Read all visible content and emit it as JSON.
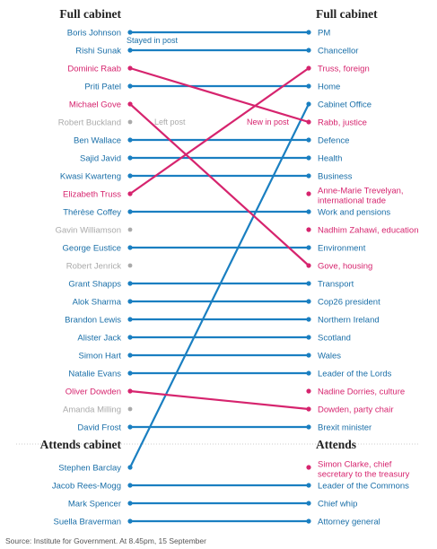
{
  "headers": {
    "left_top": "Full cabinet",
    "right_top": "Full cabinet",
    "left_attends": "Attends cabinet",
    "right_attends": "Attends"
  },
  "annotations": {
    "stayed": "Stayed in post",
    "left_post": "Left post",
    "new_in_post": "New in post"
  },
  "source": "Source: Institute for Government. At 8.45pm, 15 September",
  "colors": {
    "stayed": "#1a7fc1",
    "moved": "#d6246e",
    "left": "#aaaaaa",
    "text_blue": "#1a6fa8",
    "header": "#222222",
    "divider": "#cccccc"
  },
  "left_rows": [
    {
      "name": "Boris Johnson",
      "status": "stayed",
      "to": 0
    },
    {
      "name": "Rishi Sunak",
      "status": "stayed",
      "to": 1
    },
    {
      "name": "Dominic Raab",
      "status": "moved",
      "to": 5
    },
    {
      "name": "Priti Patel",
      "status": "stayed",
      "to": 3
    },
    {
      "name": "Michael Gove",
      "status": "moved",
      "to": 13
    },
    {
      "name": "Robert Buckland",
      "status": "left",
      "to": null
    },
    {
      "name": "Ben Wallace",
      "status": "stayed",
      "to": 6
    },
    {
      "name": "Sajid Javid",
      "status": "stayed",
      "to": 7
    },
    {
      "name": "Kwasi Kwarteng",
      "status": "stayed",
      "to": 8
    },
    {
      "name": "Elizabeth Truss",
      "status": "moved",
      "to": 2
    },
    {
      "name": "Thérèse Coffey",
      "status": "stayed",
      "to": 10
    },
    {
      "name": "Gavin Williamson",
      "status": "left",
      "to": null
    },
    {
      "name": "George Eustice",
      "status": "stayed",
      "to": 12
    },
    {
      "name": "Robert Jenrick",
      "status": "left",
      "to": null
    },
    {
      "name": "Grant Shapps",
      "status": "stayed",
      "to": 14
    },
    {
      "name": "Alok Sharma",
      "status": "stayed",
      "to": 15
    },
    {
      "name": "Brandon Lewis",
      "status": "stayed",
      "to": 16
    },
    {
      "name": "Alister Jack",
      "status": "stayed",
      "to": 17
    },
    {
      "name": "Simon Hart",
      "status": "stayed",
      "to": 18
    },
    {
      "name": "Natalie Evans",
      "status": "stayed",
      "to": 19
    },
    {
      "name": "Oliver Dowden",
      "status": "moved",
      "to": 21
    },
    {
      "name": "Amanda Milling",
      "status": "left",
      "to": null
    },
    {
      "name": "David Frost",
      "status": "stayed",
      "to": 22
    },
    {
      "name": "Stephen Barclay",
      "status": "stayed",
      "to": 4
    },
    {
      "name": "Jacob Rees-Mogg",
      "status": "stayed",
      "to": 24
    },
    {
      "name": "Mark Spencer",
      "status": "stayed",
      "to": 25
    },
    {
      "name": "Suella Braverman",
      "status": "stayed",
      "to": 26
    }
  ],
  "right_rows": [
    {
      "text": "PM",
      "style": "stayed"
    },
    {
      "text": "Chancellor",
      "style": "stayed"
    },
    {
      "text": "Truss, foreign",
      "style": "moved"
    },
    {
      "text": "Home",
      "style": "stayed"
    },
    {
      "text": "Cabinet Office",
      "style": "stayed"
    },
    {
      "text": "Rabb, justice",
      "style": "moved"
    },
    {
      "text": "Defence",
      "style": "stayed"
    },
    {
      "text": "Health",
      "style": "stayed"
    },
    {
      "text": "Business",
      "style": "stayed"
    },
    {
      "text": "Anne-Marie Trevelyan,",
      "text2": "international trade",
      "style": "moved"
    },
    {
      "text": "Work and pensions",
      "style": "stayed"
    },
    {
      "text": "Nadhim Zahawi, education",
      "style": "moved"
    },
    {
      "text": "Environment",
      "style": "stayed"
    },
    {
      "text": "Gove, housing",
      "style": "moved"
    },
    {
      "text": "Transport",
      "style": "stayed"
    },
    {
      "text": "Cop26 president",
      "style": "stayed"
    },
    {
      "text": "Northern Ireland",
      "style": "stayed"
    },
    {
      "text": "Scotland",
      "style": "stayed"
    },
    {
      "text": "Wales",
      "style": "stayed"
    },
    {
      "text": "Leader of the Lords",
      "style": "stayed"
    },
    {
      "text": "Nadine Dorries, culture",
      "style": "moved"
    },
    {
      "text": "Dowden, party chair",
      "style": "moved"
    },
    {
      "text": "Brexit minister",
      "style": "stayed"
    },
    {
      "text": "Simon Clarke, chief",
      "text2": "secretary to the treasury",
      "style": "moved"
    },
    {
      "text": "Leader of the Commons",
      "style": "stayed"
    },
    {
      "text": "Chief whip",
      "style": "stayed"
    },
    {
      "text": "Attorney general",
      "style": "stayed"
    }
  ]
}
